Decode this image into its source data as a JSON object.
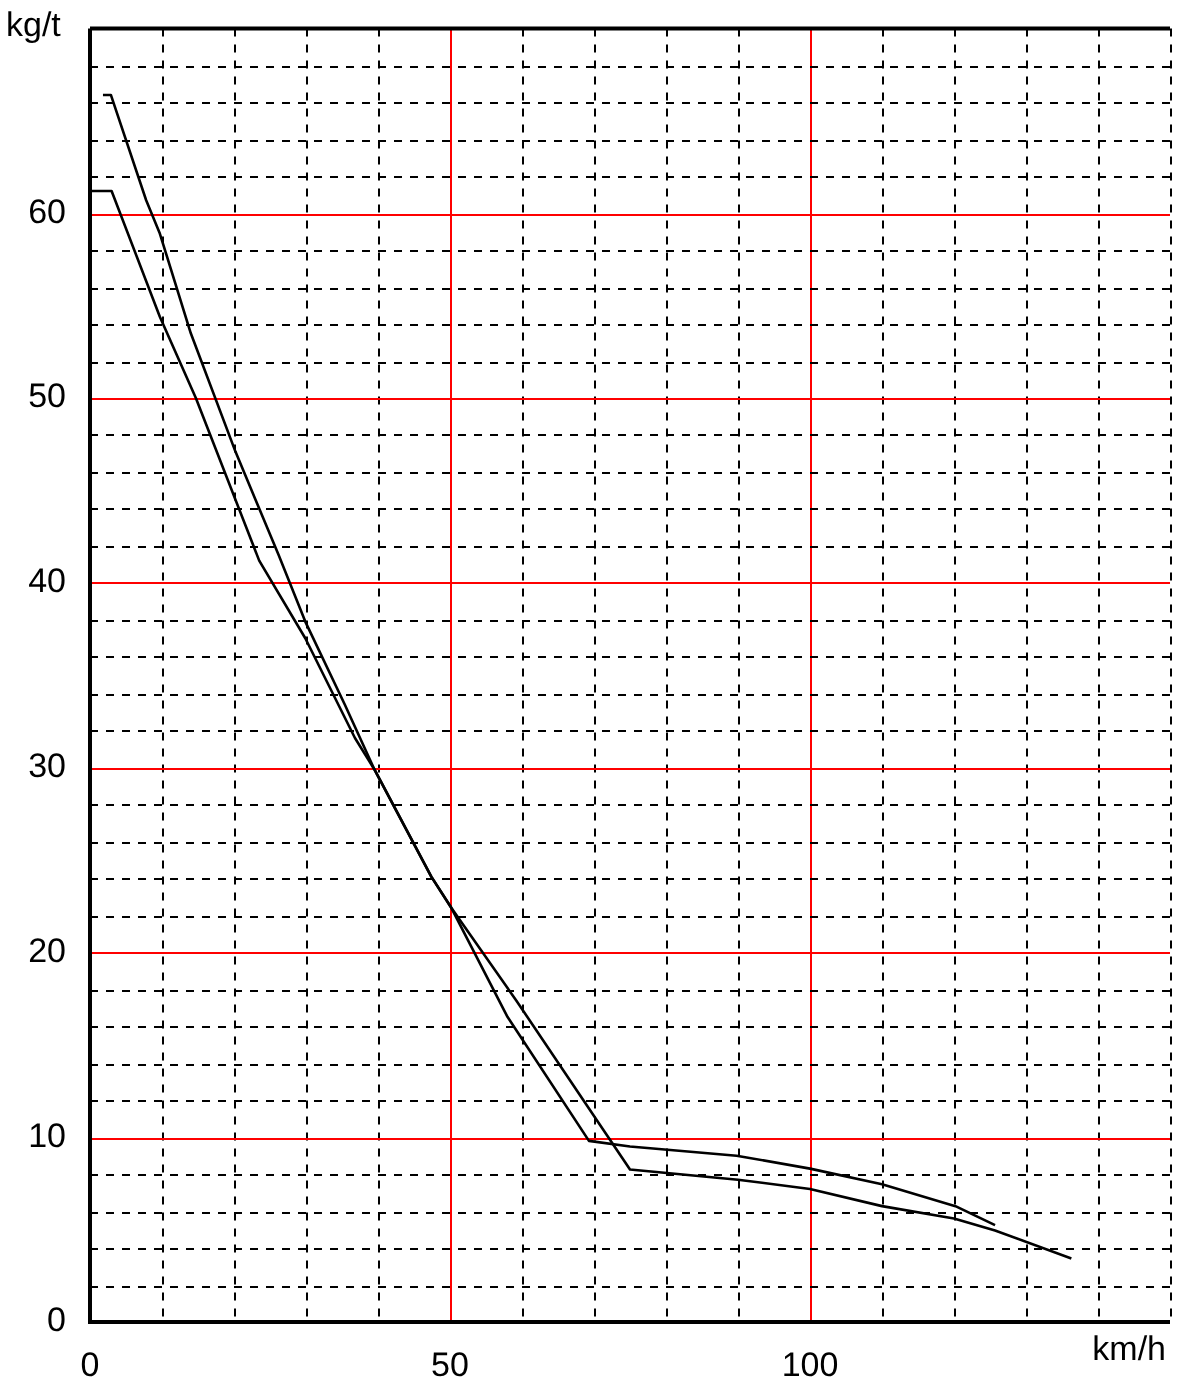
{
  "chart_data": {
    "type": "line",
    "xlabel": "km/h",
    "ylabel": "kg/t",
    "xlim": [
      0,
      150
    ],
    "ylim": [
      0,
      70
    ],
    "grid": true,
    "marker": "none",
    "legend": false,
    "xticks": [
      0,
      {
        "value": 10,
        "label": null
      },
      {
        "value": 20,
        "label": null
      },
      {
        "value": 30,
        "label": null
      },
      {
        "value": 40,
        "label": null
      },
      50,
      {
        "value": 60,
        "label": null
      },
      {
        "value": 70,
        "label": null
      },
      {
        "value": 80,
        "label": null
      },
      {
        "value": 90,
        "label": null
      },
      100,
      {
        "value": 110,
        "label": null
      },
      {
        "value": 120,
        "label": null
      },
      {
        "value": 130,
        "label": null
      },
      {
        "value": 140,
        "label": null
      },
      {
        "value": 150,
        "label": null
      }
    ],
    "yticks": [
      0,
      {
        "value": 2,
        "label": null
      },
      {
        "value": 4,
        "label": null
      },
      {
        "value": 6,
        "label": null
      },
      {
        "value": 8,
        "label": null
      },
      10,
      {
        "value": 12,
        "label": null
      },
      {
        "value": 14,
        "label": null
      },
      {
        "value": 16,
        "label": null
      },
      {
        "value": 18,
        "label": null
      },
      20,
      {
        "value": 22,
        "label": null
      },
      {
        "value": 24,
        "label": null
      },
      {
        "value": 26,
        "label": null
      },
      {
        "value": 28,
        "label": null
      },
      30,
      {
        "value": 32,
        "label": null
      },
      {
        "value": 34,
        "label": null
      },
      {
        "value": 36,
        "label": null
      },
      {
        "value": 38,
        "label": null
      },
      40,
      {
        "value": 42,
        "label": null
      },
      {
        "value": 44,
        "label": null
      },
      {
        "value": 46,
        "label": null
      },
      {
        "value": 48,
        "label": null
      },
      50,
      {
        "value": 52,
        "label": null
      },
      {
        "value": 54,
        "label": null
      },
      {
        "value": 56,
        "label": null
      },
      {
        "value": 58,
        "label": null
      },
      60,
      {
        "value": 62,
        "label": null
      },
      {
        "value": 64,
        "label": null
      },
      {
        "value": 66,
        "label": null
      },
      {
        "value": 68,
        "label": null
      },
      {
        "value": 70,
        "label": null
      }
    ],
    "series": [
      {
        "color": "#000000",
        "x": [
          1.8,
          2.9,
          7.8,
          9.7,
          14,
          20.2,
          26.2,
          29.9,
          35.4,
          39.5,
          47.4,
          50.2,
          58,
          69.3,
          75,
          89.8,
          100,
          110,
          120.2,
          125.7
        ],
        "values": [
          66.4,
          66.4,
          60.7,
          58.9,
          53.5,
          47.1,
          41.5,
          37.9,
          33.4,
          29.9,
          24.1,
          22.4,
          16.5,
          9.8,
          9.5,
          9,
          8.3,
          7.45,
          6.27,
          5.24
        ]
      },
      {
        "color": "#000000",
        "x": [
          0,
          3,
          9.7,
          14.7,
          23.5,
          29.9,
          36.8,
          39.5,
          47.4,
          50.2,
          59.2,
          75,
          90,
          100,
          110,
          120,
          125.7,
          136.3
        ],
        "values": [
          61.2,
          61.2,
          54.4,
          50,
          41.2,
          37,
          31.6,
          29.9,
          24.1,
          22.4,
          17.4,
          8.25,
          7.7,
          7.2,
          6.27,
          5.6,
          4.95,
          3.44
        ]
      }
    ]
  }
}
